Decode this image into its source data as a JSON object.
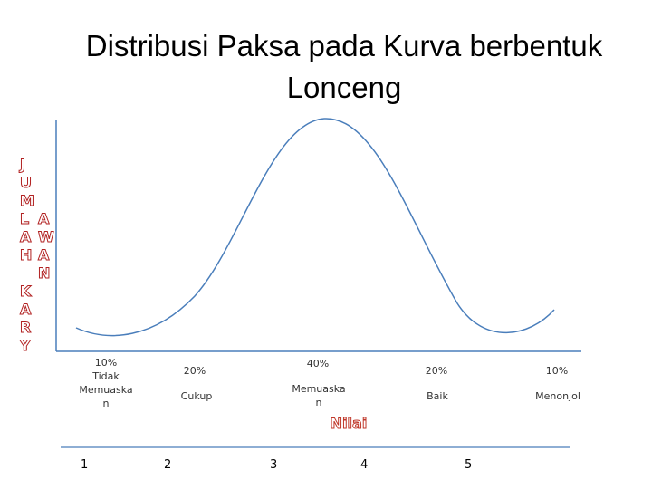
{
  "title": "Distribusi Paksa pada Kurva berbentuk Lonceng",
  "y_axis_label": {
    "col1": "J\nU\nM\nL\nA\nH\n\nK\nA\nR\nY",
    "col2": "A\nW\nA\nN"
  },
  "categories": [
    {
      "percent": "10%",
      "label": "Tidak\nMemuaska\nn"
    },
    {
      "percent": "20%",
      "label": "Cukup"
    },
    {
      "percent": "40%",
      "label": "Memuaska\nn"
    },
    {
      "percent": "20%",
      "label": "Baik"
    },
    {
      "percent": "10%",
      "label": "Menonjol"
    }
  ],
  "x_axis_label": "Nilai",
  "scale": [
    "1",
    "2",
    "3",
    "4",
    "5"
  ],
  "colors": {
    "curve": "#4a7ebb",
    "axis": "#4a7ebb",
    "label_outline": "#b22222"
  }
}
